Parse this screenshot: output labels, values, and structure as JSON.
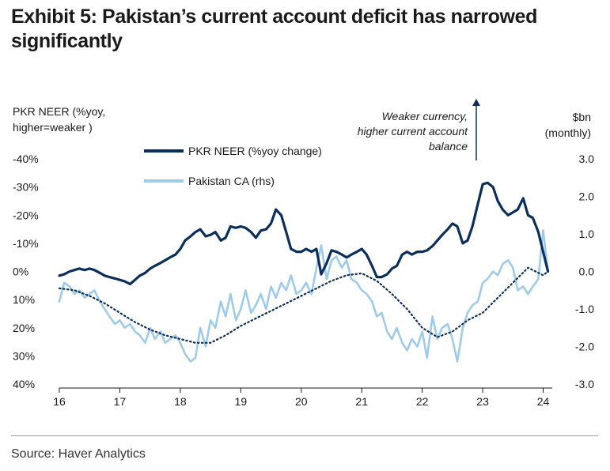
{
  "title": {
    "line1": "Exhibit 5: Pakistan’s current account deficit has narrowed",
    "line2": "significantly"
  },
  "source": "Source: Haver Analytics",
  "colors": {
    "neer": "#0b2f5a",
    "ca": "#9fcbea",
    "ca_trend": "#0b2f5a",
    "arrow": "#0b2f5a"
  },
  "chart_data": {
    "type": "line",
    "left_axis_title": {
      "line1": "PKR NEER (%yoy,",
      "line2": "higher=weaker )"
    },
    "right_axis_title": {
      "line1": "$bn",
      "line2": "(monthly)"
    },
    "annotation": {
      "line1": "Weaker currency,",
      "line2": "higher current account",
      "line3": "balance"
    },
    "x_ticks": [
      "16",
      "17",
      "18",
      "19",
      "20",
      "21",
      "22",
      "23",
      "24"
    ],
    "left_ticks": [
      "-40%",
      "-30%",
      "-20%",
      "-10%",
      "0%",
      "10%",
      "20%",
      "30%",
      "40%"
    ],
    "right_ticks": [
      "3.0",
      "2.0",
      "1.0",
      "0.0",
      "-1.0",
      "-2.0",
      "-3.0"
    ],
    "left_range": [
      40,
      -40
    ],
    "right_range": [
      -3,
      3
    ],
    "x_range": [
      2016,
      2024.15
    ],
    "series": [
      {
        "name": "PKR NEER (%yoy change)",
        "axis": "left",
        "x": [
          2016.0,
          2016.08,
          2016.17,
          2016.25,
          2016.33,
          2016.42,
          2016.5,
          2016.58,
          2016.67,
          2016.75,
          2016.83,
          2016.92,
          2017.0,
          2017.08,
          2017.17,
          2017.25,
          2017.33,
          2017.42,
          2017.5,
          2017.58,
          2017.67,
          2017.75,
          2017.83,
          2017.92,
          2018.0,
          2018.08,
          2018.17,
          2018.25,
          2018.33,
          2018.42,
          2018.5,
          2018.58,
          2018.67,
          2018.75,
          2018.83,
          2018.92,
          2019.0,
          2019.08,
          2019.17,
          2019.25,
          2019.33,
          2019.42,
          2019.5,
          2019.58,
          2019.67,
          2019.75,
          2019.83,
          2019.92,
          2020.0,
          2020.08,
          2020.17,
          2020.25,
          2020.33,
          2020.42,
          2020.5,
          2020.58,
          2020.67,
          2020.75,
          2020.83,
          2020.92,
          2021.0,
          2021.08,
          2021.17,
          2021.25,
          2021.33,
          2021.42,
          2021.5,
          2021.58,
          2021.67,
          2021.75,
          2021.83,
          2021.92,
          2022.0,
          2022.08,
          2022.17,
          2022.25,
          2022.33,
          2022.42,
          2022.5,
          2022.58,
          2022.67,
          2022.75,
          2022.83,
          2022.92,
          2023.0,
          2023.08,
          2023.17,
          2023.25,
          2023.33,
          2023.42,
          2023.5,
          2023.58,
          2023.67,
          2023.75,
          2023.83,
          2023.92,
          2024.0,
          2024.08
        ],
        "values": [
          1.5,
          1,
          0,
          -0.5,
          -1,
          -0.5,
          -1,
          -0.5,
          0.5,
          1.5,
          2,
          2.5,
          3,
          3.5,
          4.5,
          3,
          1.5,
          0.5,
          -1,
          -2,
          -3,
          -4,
          -5,
          -6,
          -8,
          -11,
          -12.5,
          -14,
          -15,
          -12.5,
          -13,
          -14,
          -11,
          -12,
          -16,
          -15.5,
          -16,
          -15.5,
          -14,
          -12,
          -14.5,
          -15,
          -17,
          -22,
          -20,
          -14,
          -8,
          -7,
          -7,
          -8,
          -7,
          -8,
          1,
          -3,
          -7.5,
          -7,
          -6,
          -5,
          -6,
          -7,
          -8,
          -6,
          -2,
          2,
          2,
          1,
          -1,
          -2,
          -6,
          -7,
          -6,
          -7,
          -7,
          -7.5,
          -9,
          -11,
          -13,
          -15,
          -17,
          -16,
          -10,
          -11,
          -16,
          -24,
          -31,
          -31.5,
          -30,
          -25,
          -22,
          -20,
          -21,
          -22,
          -26,
          -20,
          -19,
          -14,
          -7,
          0
        ],
        "style": "solid-thick"
      },
      {
        "name": "Pakistan CA (rhs)",
        "axis": "right",
        "x": [
          2016.0,
          2016.08,
          2016.17,
          2016.25,
          2016.33,
          2016.42,
          2016.5,
          2016.58,
          2016.67,
          2016.75,
          2016.83,
          2016.92,
          2017.0,
          2017.08,
          2017.17,
          2017.25,
          2017.33,
          2017.42,
          2017.5,
          2017.58,
          2017.67,
          2017.75,
          2017.83,
          2017.92,
          2018.0,
          2018.08,
          2018.17,
          2018.25,
          2018.33,
          2018.42,
          2018.5,
          2018.58,
          2018.67,
          2018.75,
          2018.83,
          2018.92,
          2019.0,
          2019.08,
          2019.17,
          2019.25,
          2019.33,
          2019.42,
          2019.5,
          2019.58,
          2019.67,
          2019.75,
          2019.83,
          2019.92,
          2020.0,
          2020.08,
          2020.17,
          2020.25,
          2020.33,
          2020.42,
          2020.5,
          2020.58,
          2020.67,
          2020.75,
          2020.83,
          2020.92,
          2021.0,
          2021.08,
          2021.17,
          2021.25,
          2021.33,
          2021.42,
          2021.5,
          2021.58,
          2021.67,
          2021.75,
          2021.83,
          2021.92,
          2022.0,
          2022.08,
          2022.17,
          2022.25,
          2022.33,
          2022.42,
          2022.5,
          2022.58,
          2022.67,
          2022.75,
          2022.83,
          2022.92,
          2023.0,
          2023.08,
          2023.17,
          2023.25,
          2023.33,
          2023.42,
          2023.5,
          2023.58,
          2023.67,
          2023.75,
          2023.83,
          2023.92,
          2024.0,
          2024.08
        ],
        "values": [
          -0.8,
          -0.3,
          -0.4,
          -0.6,
          -0.5,
          -0.7,
          -0.6,
          -0.5,
          -0.8,
          -1.0,
          -1.2,
          -1.4,
          -1.3,
          -1.5,
          -1.4,
          -1.6,
          -1.7,
          -1.9,
          -1.5,
          -1.8,
          -1.6,
          -1.9,
          -1.8,
          -1.7,
          -1.9,
          -2.2,
          -2.4,
          -2.3,
          -1.5,
          -2.0,
          -1.3,
          -1.5,
          -0.8,
          -1.2,
          -0.6,
          -1.3,
          -1.0,
          -0.5,
          -1.1,
          -0.9,
          -0.6,
          -1.0,
          -0.4,
          -0.7,
          -0.3,
          -0.5,
          -0.1,
          -0.6,
          -0.5,
          -0.3,
          -0.6,
          0.1,
          0.7,
          -0.2,
          0.3,
          0.4,
          0.1,
          0.3,
          -0.2,
          -0.3,
          -0.5,
          -0.6,
          -0.8,
          -1.2,
          -1.1,
          -1.6,
          -1.8,
          -1.5,
          -1.9,
          -2.1,
          -1.8,
          -2.0,
          -1.6,
          -2.3,
          -1.2,
          -1.8,
          -1.5,
          -1.4,
          -1.8,
          -2.4,
          -1.5,
          -1.1,
          -0.9,
          -0.8,
          -0.3,
          -0.2,
          0.0,
          -0.1,
          0.2,
          0.3,
          0.1,
          -0.5,
          -0.4,
          -0.6,
          -0.4,
          -0.2,
          1.1,
          0.0
        ],
        "style": "solid-light"
      },
      {
        "axis": "right",
        "x": [
          2016.0,
          2016.25,
          2016.5,
          2016.75,
          2017.0,
          2017.25,
          2017.5,
          2017.75,
          2018.0,
          2018.25,
          2018.5,
          2018.75,
          2019.0,
          2019.25,
          2019.5,
          2019.75,
          2020.0,
          2020.25,
          2020.5,
          2020.75,
          2021.0,
          2021.25,
          2021.5,
          2021.75,
          2022.0,
          2022.25,
          2022.5,
          2022.75,
          2023.0,
          2023.25,
          2023.5,
          2023.75,
          2024.0,
          2024.08
        ],
        "values": [
          -0.45,
          -0.5,
          -0.65,
          -0.85,
          -1.1,
          -1.35,
          -1.55,
          -1.7,
          -1.8,
          -1.9,
          -1.9,
          -1.7,
          -1.45,
          -1.25,
          -1.05,
          -0.85,
          -0.65,
          -0.45,
          -0.25,
          -0.1,
          -0.05,
          -0.25,
          -0.6,
          -1.0,
          -1.5,
          -1.75,
          -1.6,
          -1.3,
          -1.1,
          -0.7,
          -0.3,
          0.1,
          -0.1,
          0.0
        ],
        "style": "dotted"
      }
    ]
  }
}
